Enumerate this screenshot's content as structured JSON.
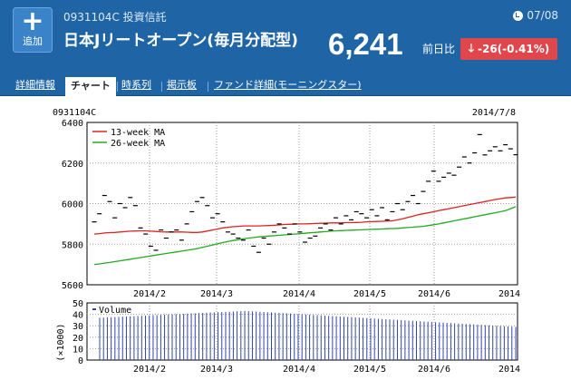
{
  "header": {
    "add_label": "追加",
    "code_line": "0931104C 投資信託",
    "fund_name": "日本Jリートオープン(毎月分配型)",
    "date": "07/08",
    "price": "6,241",
    "change_label": "前日比",
    "change_value": "-26(-0.41%)"
  },
  "tabs": [
    {
      "label": "詳細情報"
    },
    {
      "label": "チャート"
    },
    {
      "label": "時系列"
    },
    {
      "label": "掲示板"
    },
    {
      "label": "ファンド詳細(モーニングスター)"
    }
  ],
  "colors": {
    "header_bg": "#1f65a6",
    "down": "#e0474c",
    "ma13": "#dd2222",
    "ma26": "#22aa22",
    "volume": "#3344aa"
  },
  "chart_data": [
    {
      "type": "candlestick",
      "code_label": "0931104C",
      "date_label": "2014/7/8",
      "ylim": [
        5600,
        6400
      ],
      "yticks": [
        5600,
        5800,
        6000,
        6200,
        6400
      ],
      "xticks": [
        "2014/2",
        "2014/3",
        "2014/4",
        "2014/5",
        "2014/6",
        "2014"
      ],
      "legend": [
        "13-week MA",
        "26-week MA"
      ],
      "legend_position": "top-left",
      "grid": true,
      "prices": [
        5910,
        5950,
        6040,
        6010,
        5930,
        6000,
        5980,
        6030,
        5990,
        5880,
        5850,
        5790,
        5770,
        5870,
        5830,
        5860,
        5870,
        5820,
        5900,
        5960,
        6010,
        6030,
        5990,
        5930,
        5950,
        5910,
        5860,
        5850,
        5830,
        5820,
        5870,
        5790,
        5760,
        5830,
        5800,
        5860,
        5900,
        5880,
        5850,
        5900,
        5860,
        5810,
        5830,
        5840,
        5880,
        5900,
        5870,
        5930,
        5900,
        5940,
        5920,
        5960,
        5950,
        5930,
        5970,
        5940,
        5980,
        5920,
        5960,
        6000,
        5970,
        6010,
        6040,
        6000,
        6060,
        6110,
        6160,
        6110,
        6130,
        6150,
        6140,
        6180,
        6230,
        6200,
        6250,
        6340,
        6240,
        6260,
        6280,
        6260,
        6290,
        6270,
        6241
      ],
      "ma13": [
        5850,
        5852,
        5855,
        5857,
        5858,
        5860,
        5862,
        5864,
        5865,
        5866,
        5866,
        5864,
        5863,
        5861,
        5860,
        5860,
        5860,
        5860,
        5859,
        5858,
        5858,
        5860,
        5865,
        5870,
        5875,
        5880,
        5883,
        5886,
        5888,
        5890,
        5890,
        5890,
        5890,
        5891,
        5892,
        5893,
        5895,
        5897,
        5898,
        5899,
        5900,
        5900,
        5901,
        5902,
        5903,
        5904,
        5905,
        5905,
        5905,
        5906,
        5906,
        5907,
        5908,
        5910,
        5911,
        5912,
        5913,
        5914,
        5915,
        5920,
        5925,
        5932,
        5938,
        5945,
        5950,
        5955,
        5960,
        5965,
        5970,
        5975,
        5980,
        5985,
        5990,
        5995,
        6000,
        6005,
        6010,
        6015,
        6020,
        6024,
        6028,
        6030,
        6032
      ],
      "ma26": [
        5700,
        5703,
        5707,
        5710,
        5714,
        5718,
        5722,
        5726,
        5730,
        5734,
        5738,
        5742,
        5746,
        5750,
        5754,
        5758,
        5762,
        5766,
        5770,
        5774,
        5778,
        5784,
        5790,
        5796,
        5802,
        5808,
        5813,
        5818,
        5822,
        5826,
        5830,
        5833,
        5836,
        5838,
        5840,
        5842,
        5844,
        5846,
        5848,
        5850,
        5852,
        5854,
        5856,
        5858,
        5860,
        5862,
        5864,
        5866,
        5867,
        5868,
        5869,
        5870,
        5871,
        5872,
        5873,
        5874,
        5875,
        5876,
        5877,
        5878,
        5880,
        5882,
        5884,
        5886,
        5888,
        5892,
        5896,
        5900,
        5905,
        5910,
        5915,
        5920,
        5925,
        5930,
        5935,
        5940,
        5945,
        5950,
        5955,
        5960,
        5965,
        5975,
        5985
      ]
    },
    {
      "type": "bar",
      "ylabel": "(×1000)",
      "ylim": [
        0,
        50
      ],
      "yticks": [
        0,
        10,
        20,
        30,
        40,
        50
      ],
      "xticks": [
        "2014/2",
        "2014/3",
        "2014/4",
        "2014/5",
        "2014/6",
        "2014"
      ],
      "legend": [
        "Volume"
      ],
      "grid": true,
      "volume_start": 37,
      "volume_peak": 43,
      "volume_end": 29
    }
  ]
}
